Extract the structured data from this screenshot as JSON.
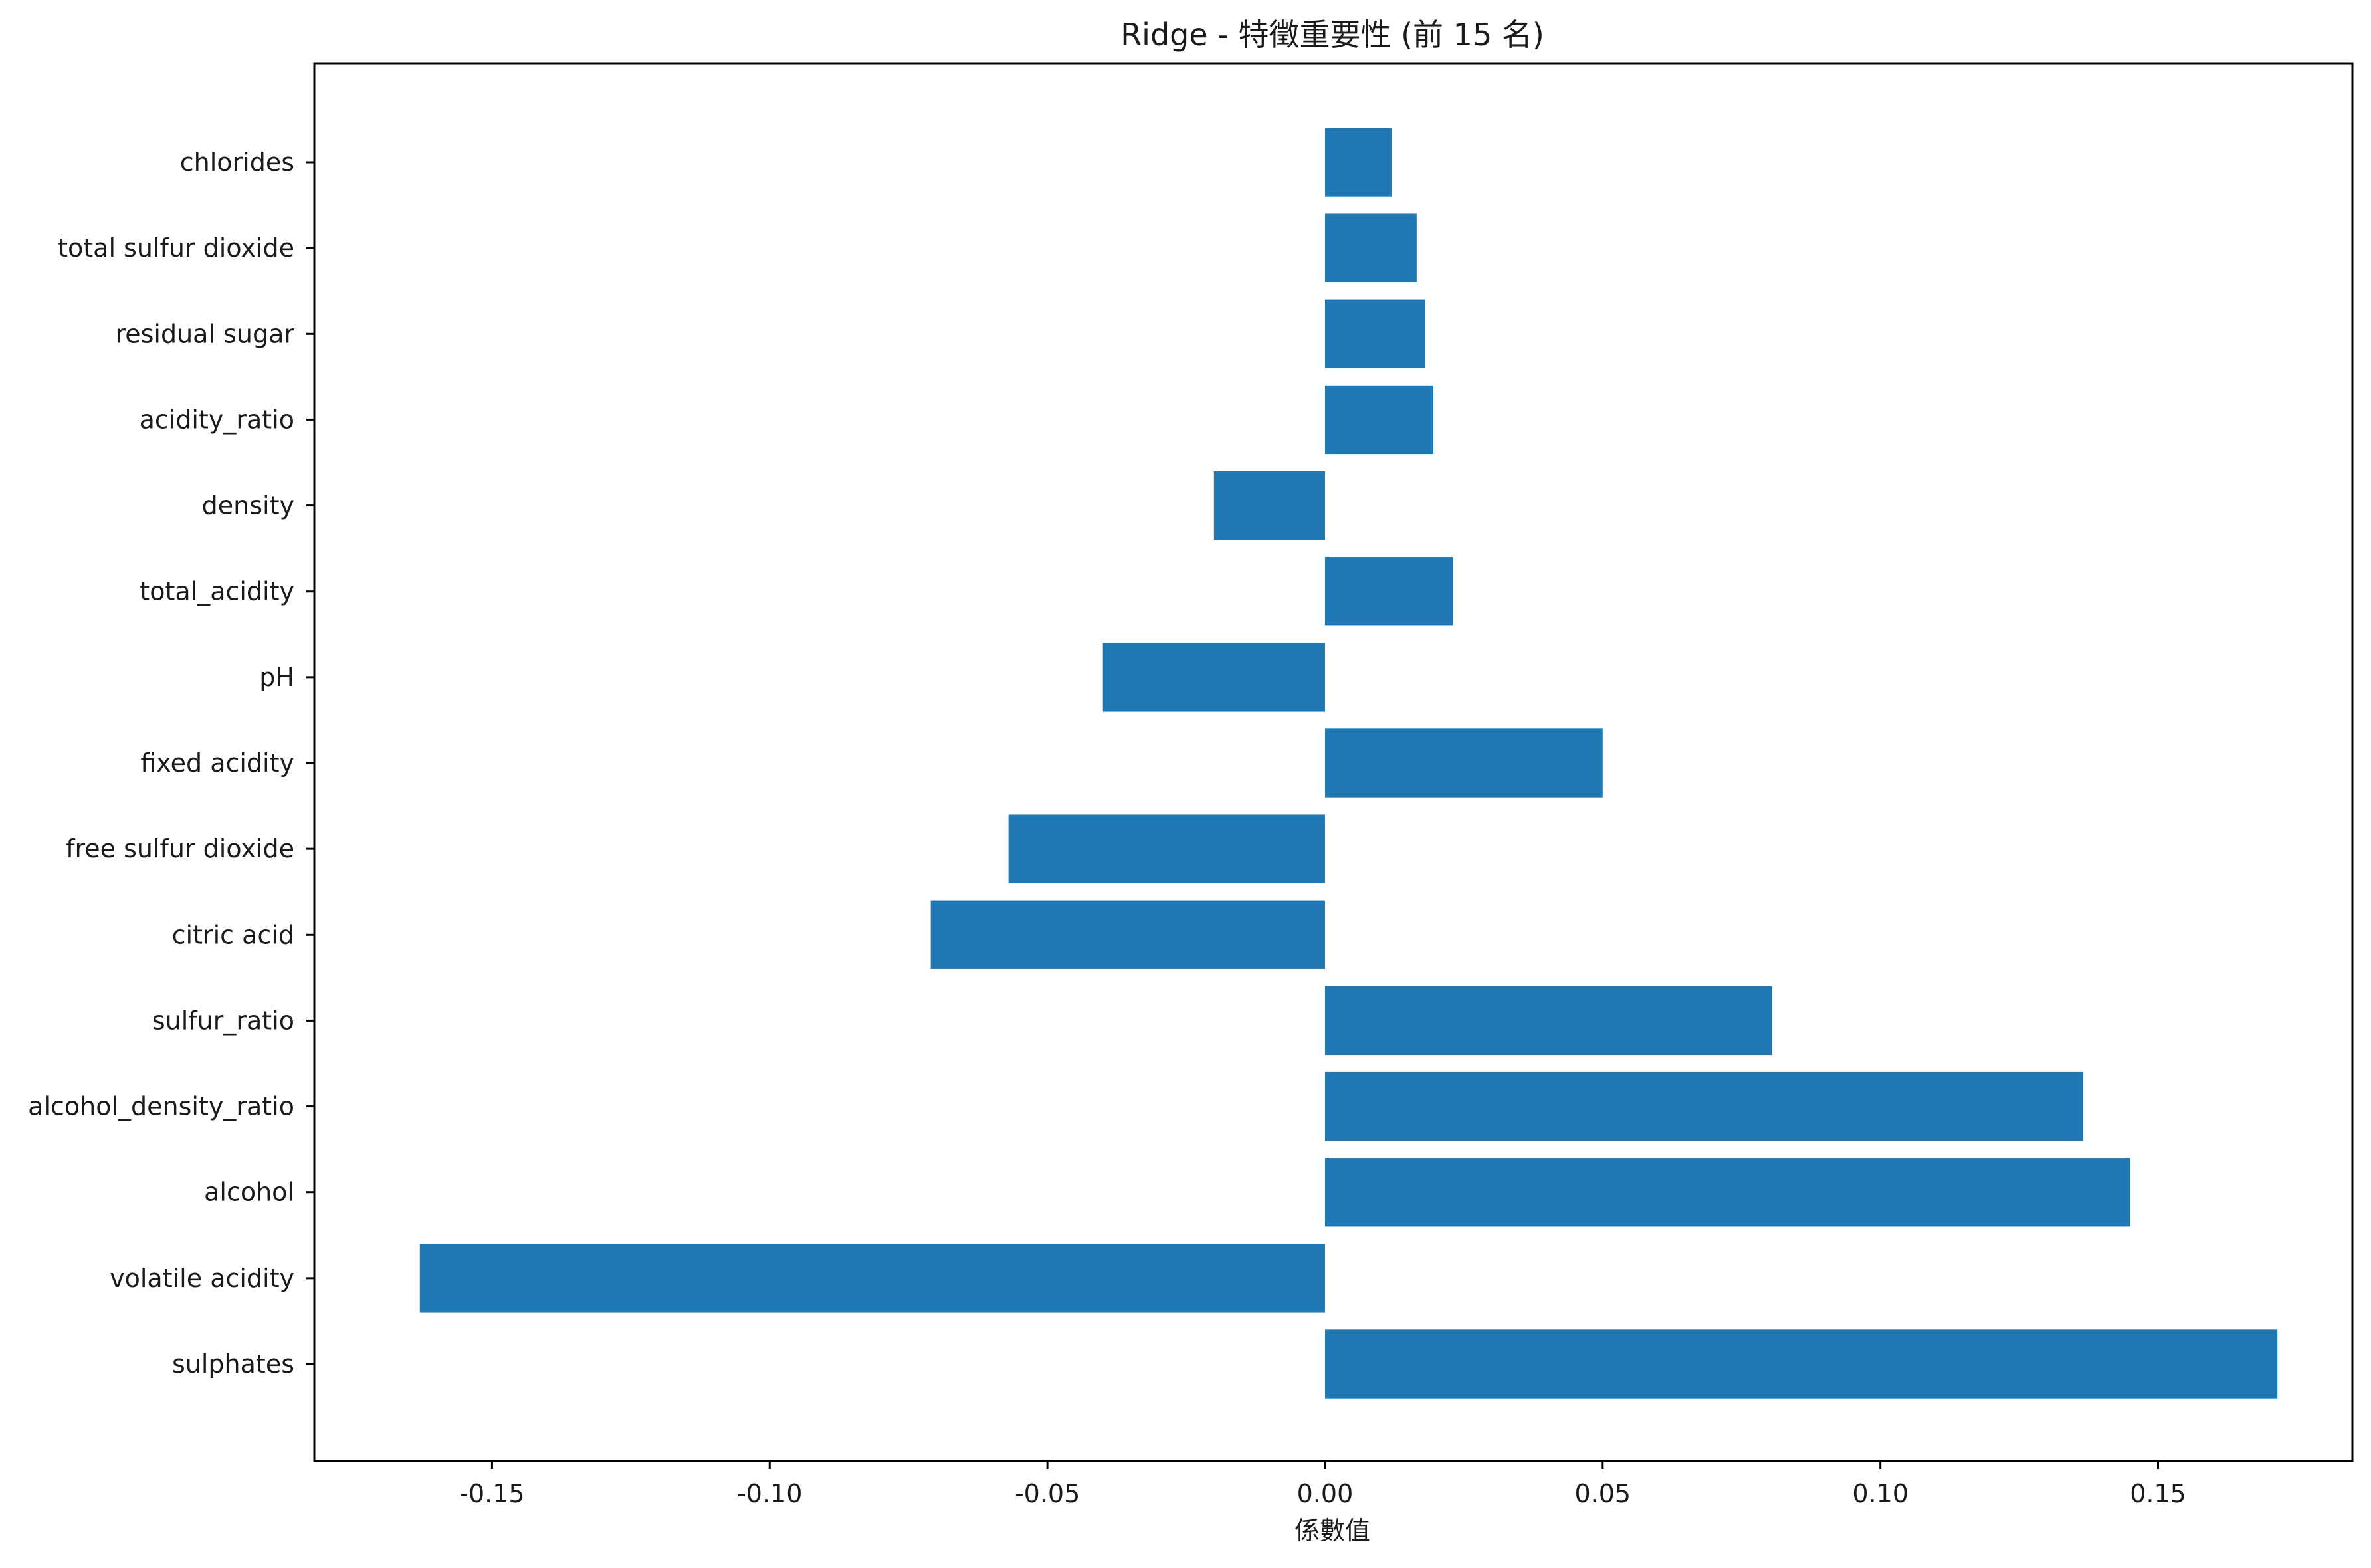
{
  "chart_data": {
    "type": "bar",
    "orientation": "horizontal",
    "title": "Ridge - 特徵重要性 (前 15 名)",
    "xlabel": "係數值",
    "ylabel": "",
    "xlim": [
      -0.182,
      0.185
    ],
    "x_ticks": [
      -0.15,
      -0.1,
      -0.05,
      0.0,
      0.05,
      0.1,
      0.15
    ],
    "x_tick_labels": [
      "-0.15",
      "-0.10",
      "-0.05",
      "0.00",
      "0.05",
      "0.10",
      "0.15"
    ],
    "grid": false,
    "bar_color": "#1f77b4",
    "categories": [
      "chlorides",
      "total sulfur dioxide",
      "residual sugar",
      "acidity_ratio",
      "density",
      "total_acidity",
      "pH",
      "fixed acidity",
      "free sulfur dioxide",
      "citric acid",
      "sulfur_ratio",
      "alcohol_density_ratio",
      "alcohol",
      "volatile acidity",
      "sulphates"
    ],
    "values": [
      0.012,
      0.0165,
      0.018,
      0.0195,
      -0.02,
      0.023,
      -0.04,
      0.05,
      -0.057,
      -0.071,
      0.0805,
      0.1365,
      0.145,
      -0.163,
      0.1715
    ]
  }
}
